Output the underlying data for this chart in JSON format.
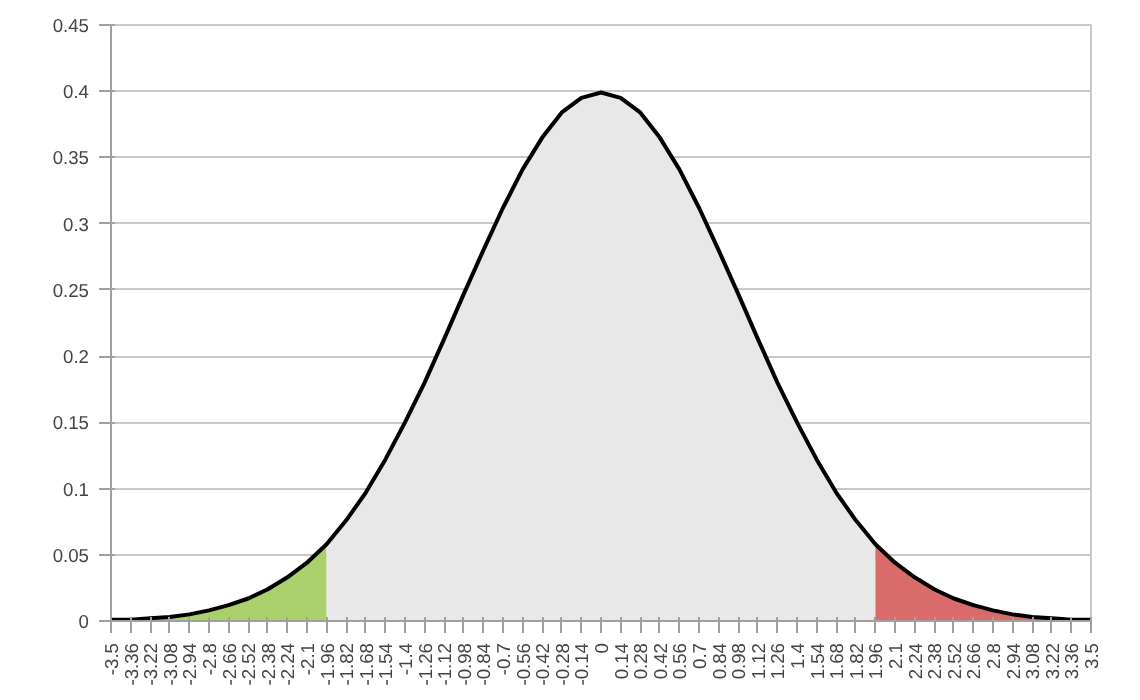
{
  "chart_data": {
    "type": "area",
    "categories": [
      "-3.5",
      "-3.36",
      "-3.22",
      "-3.08",
      "-2.94",
      "-2.8",
      "-2.66",
      "-2.52",
      "-2.38",
      "-2.24",
      "-2.1",
      "-1.96",
      "-1.82",
      "-1.68",
      "-1.54",
      "-1.4",
      "-1.26",
      "-1.12",
      "-0.98",
      "-0.84",
      "-0.7",
      "-0.56",
      "-0.42",
      "-0.28",
      "-0.14",
      "0",
      "0.14",
      "0.28",
      "0.42",
      "0.56",
      "0.7",
      "0.84",
      "0.98",
      "1.12",
      "1.26",
      "1.4",
      "1.54",
      "1.68",
      "1.82",
      "1.96",
      "2.1",
      "2.24",
      "2.38",
      "2.52",
      "2.66",
      "2.8",
      "2.94",
      "3.08",
      "3.22",
      "3.36",
      "3.5"
    ],
    "series": [
      {
        "color": "#a9d06b",
        "values": [
          0.001,
          0.001,
          0.002,
          0.003,
          0.005,
          0.008,
          0.012,
          0.017,
          0.024,
          0.033,
          0.044,
          0.058,
          null,
          null,
          null,
          null,
          null,
          null,
          null,
          null,
          null,
          null,
          null,
          null,
          null,
          null,
          null,
          null,
          null,
          null,
          null,
          null,
          null,
          null,
          null,
          null,
          null,
          null,
          null,
          null,
          null,
          null,
          null,
          null,
          null,
          null,
          null,
          null,
          null,
          null,
          null
        ]
      },
      {
        "color": "#e8e8e8",
        "values": [
          null,
          null,
          null,
          null,
          null,
          null,
          null,
          null,
          null,
          null,
          null,
          0.058,
          0.076,
          0.097,
          0.122,
          0.15,
          0.18,
          0.213,
          0.247,
          0.28,
          0.312,
          0.341,
          0.365,
          0.384,
          0.395,
          0.399,
          0.395,
          0.384,
          0.365,
          0.341,
          0.312,
          0.28,
          0.247,
          0.213,
          0.18,
          0.15,
          0.122,
          0.097,
          0.076,
          0.058,
          null,
          null,
          null,
          null,
          null,
          null,
          null,
          null,
          null,
          null,
          null
        ]
      },
      {
        "color": "#d96b6b",
        "values": [
          null,
          null,
          null,
          null,
          null,
          null,
          null,
          null,
          null,
          null,
          null,
          null,
          null,
          null,
          null,
          null,
          null,
          null,
          null,
          null,
          null,
          null,
          null,
          null,
          null,
          null,
          null,
          null,
          null,
          null,
          null,
          null,
          null,
          null,
          null,
          null,
          null,
          null,
          null,
          0.058,
          0.044,
          0.033,
          0.024,
          0.017,
          0.012,
          0.008,
          0.005,
          0.003,
          0.002,
          0.001,
          0.001
        ]
      },
      {
        "type": "line",
        "color": "#000000",
        "values": [
          0.001,
          0.001,
          0.002,
          0.003,
          0.005,
          0.008,
          0.012,
          0.017,
          0.024,
          0.033,
          0.044,
          0.058,
          0.076,
          0.097,
          0.122,
          0.15,
          0.18,
          0.213,
          0.247,
          0.28,
          0.312,
          0.341,
          0.365,
          0.384,
          0.395,
          0.399,
          0.395,
          0.384,
          0.365,
          0.341,
          0.312,
          0.28,
          0.247,
          0.213,
          0.18,
          0.15,
          0.122,
          0.097,
          0.076,
          0.058,
          0.044,
          0.033,
          0.024,
          0.017,
          0.012,
          0.008,
          0.005,
          0.003,
          0.002,
          0.001,
          0.001
        ]
      }
    ],
    "ylim": [
      0,
      0.45
    ],
    "yticks": [
      0,
      0.05,
      0.1,
      0.15,
      0.2,
      0.25,
      0.3,
      0.35,
      0.4,
      0.45
    ],
    "grid": "y"
  }
}
